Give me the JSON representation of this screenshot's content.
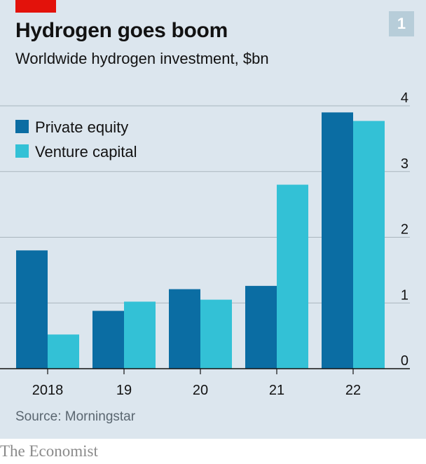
{
  "header": {
    "title": "Hydrogen goes boom",
    "subtitle": "Worldwide hydrogen investment, $bn",
    "chart_number": "1"
  },
  "footer": {
    "source": "Source: Morningstar",
    "brand": "The Economist"
  },
  "colors": {
    "private_equity": "#0b6da3",
    "venture_capital": "#33c1d6",
    "brand_red": "#e3120b",
    "background": "#dce6ee"
  },
  "chart_data": {
    "type": "bar",
    "title": "Hydrogen goes boom",
    "subtitle": "Worldwide hydrogen investment, $bn",
    "categories": [
      "2018",
      "19",
      "20",
      "21",
      "22"
    ],
    "series": [
      {
        "name": "Private equity",
        "values": [
          1.8,
          0.88,
          1.21,
          1.26,
          3.9
        ]
      },
      {
        "name": "Venture capital",
        "values": [
          0.52,
          1.02,
          1.05,
          2.8,
          3.77
        ]
      }
    ],
    "ylim": [
      0,
      4
    ],
    "yticks": [
      "0",
      "1",
      "2",
      "3",
      "4"
    ],
    "y_axis_side": "right",
    "grid": true,
    "legend": "top-left"
  }
}
